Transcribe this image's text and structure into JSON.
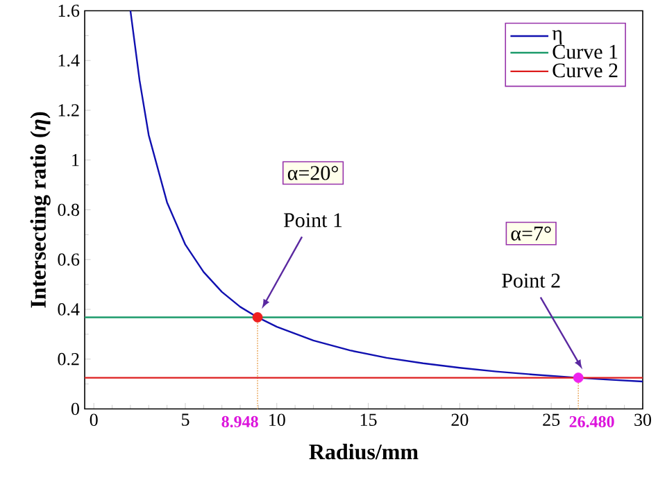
{
  "chart_data": {
    "type": "line",
    "xlabel": "Radius/mm",
    "ylabel": "Intersecting ratio (*η*)",
    "xlim": [
      -0.5,
      30
    ],
    "ylim": [
      0,
      1.6
    ],
    "xticks": [
      0,
      5,
      10,
      15,
      20,
      25,
      30
    ],
    "yticks": [
      0,
      0.2,
      0.4,
      0.6,
      0.8,
      1,
      1.2,
      1.4,
      1.6
    ],
    "legend": "top right",
    "grid": false,
    "series": [
      {
        "name": "η",
        "color": "#1010b0",
        "x": [
          2.0,
          2.5,
          3,
          4,
          5,
          6,
          7,
          8,
          8.948,
          10,
          12,
          14,
          16,
          18,
          20,
          22,
          24,
          26.48,
          28,
          30
        ],
        "values": [
          1.6,
          1.32,
          1.1,
          0.83,
          0.66,
          0.55,
          0.47,
          0.41,
          0.368,
          0.33,
          0.275,
          0.235,
          0.205,
          0.183,
          0.165,
          0.15,
          0.138,
          0.125,
          0.118,
          0.11
        ]
      },
      {
        "name": "Curve 1",
        "color": "#1a9a6a",
        "x": [
          -0.5,
          30
        ],
        "values": [
          0.368,
          0.368
        ]
      },
      {
        "name": "Curve 2",
        "color": "#dd1c1c",
        "x": [
          -0.5,
          30
        ],
        "values": [
          0.125,
          0.125
        ]
      },
      {
        "type": "scatter",
        "color": "#ee2020",
        "x": [
          8.948
        ],
        "values": [
          0.368
        ]
      },
      {
        "type": "scatter",
        "color": "#ee22ee",
        "x": [
          26.48
        ],
        "values": [
          0.125
        ]
      }
    ],
    "ref_lines": [
      {
        "axis": "x",
        "value": 8.948,
        "label": "8.948",
        "color": "#e8a050",
        "line_style": "dotted"
      },
      {
        "axis": "x",
        "value": 26.48,
        "label": "26.480",
        "color": "#e8a050",
        "line_style": "dotted"
      }
    ],
    "annotations": [
      "Point 1",
      "α=20°",
      "Point 2",
      "α=7°"
    ]
  }
}
